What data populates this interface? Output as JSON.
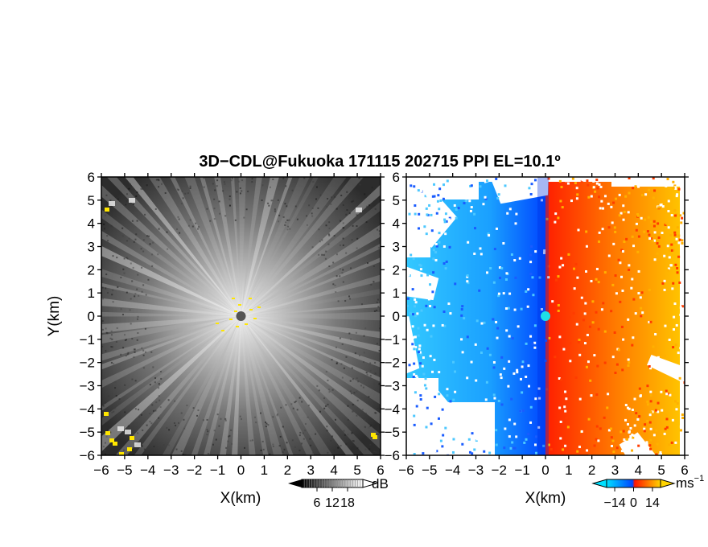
{
  "title": "3D−CDL@Fukuoka 171115 202715 PPI EL=10.1º",
  "chart_data": [
    {
      "type": "heatmap",
      "name": "reflectivity",
      "xlabel": "X(km)",
      "ylabel": "Y(km)",
      "xlim": [
        -6,
        6
      ],
      "ylim": [
        -6,
        6
      ],
      "xticks": [
        "−6",
        "−5",
        "−4",
        "−3",
        "−2",
        "−1",
        "0",
        "1",
        "2",
        "3",
        "4",
        "5",
        "6"
      ],
      "yticks": [
        "6",
        "5",
        "4",
        "3",
        "2",
        "1",
        "0",
        "−1",
        "−2",
        "−3",
        "−4",
        "−5",
        "−6"
      ],
      "colorbar": {
        "unit": "dB",
        "ticks": [
          "6",
          "12",
          "18"
        ],
        "tick_values": [
          6,
          12,
          18
        ],
        "range": [
          0,
          24
        ],
        "colors": [
          "#000000",
          "#ffffff"
        ],
        "extend": "both"
      },
      "pattern": "radial streaks, bright near radar at origin, clutter in yellow near corners"
    },
    {
      "type": "heatmap",
      "name": "doppler velocity",
      "xlabel": "X(km)",
      "xlim": [
        -6,
        6
      ],
      "ylim": [
        -6,
        6
      ],
      "xticks": [
        "−6",
        "−5",
        "−4",
        "−3",
        "−2",
        "−1",
        "0",
        "1",
        "2",
        "3",
        "4",
        "5",
        "6"
      ],
      "yticks": [
        "6",
        "5",
        "4",
        "3",
        "2",
        "1",
        "0",
        "−1",
        "−2",
        "−3",
        "−4",
        "−5",
        "−6"
      ],
      "colorbar": {
        "unit": "ms",
        "unit_exponent": "−1",
        "ticks": [
          "−14",
          "0",
          "14"
        ],
        "tick_values": [
          -14,
          0,
          14
        ],
        "range": [
          -20,
          20
        ],
        "colors": [
          "#00d8ff",
          "#0046ff",
          "#ff1400",
          "#ffd400"
        ],
        "extend": "both"
      },
      "pattern": "negative (blue) to the west, positive (red-yellow) to the east, data gaps at edges"
    }
  ]
}
